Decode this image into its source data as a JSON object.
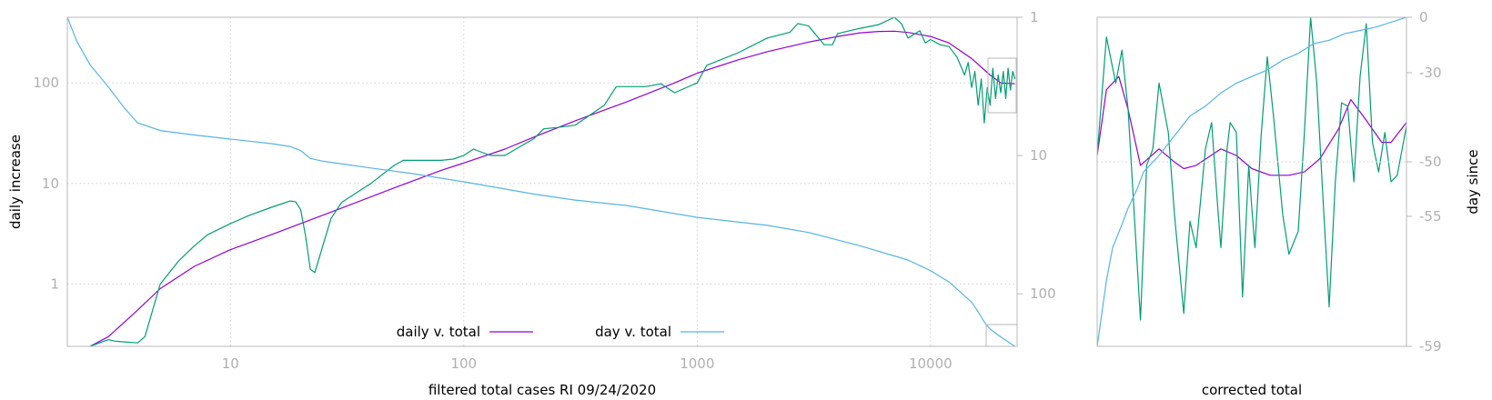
{
  "chart_data": [
    {
      "type": "line",
      "xlabel": "filtered total cases RI 09/24/2020",
      "ylabel": "daily increase",
      "x_scale": "log",
      "y_scale": "log",
      "xlim": [
        2,
        23500
      ],
      "ylim": [
        0.24,
        450
      ],
      "x_ticks": [
        "10",
        "100",
        "1000",
        "10000"
      ],
      "y_ticks": [
        "1",
        "10",
        "100"
      ],
      "y2_label": "",
      "y2_scale": "log-reversed",
      "y2lim": [
        1,
        240
      ],
      "y2_ticks": [
        "1",
        "10",
        "100"
      ],
      "grid": true,
      "legend_placement": "bottom-center",
      "legend": [
        "daily v. total",
        "day v. total"
      ],
      "series": [
        {
          "name": "daily v. total",
          "color": "#9400d3",
          "axis": "y",
          "points": [
            [
              2.5,
              0.24
            ],
            [
              3,
              0.3
            ],
            [
              4,
              0.55
            ],
            [
              5,
              0.9
            ],
            [
              7,
              1.5
            ],
            [
              10,
              2.2
            ],
            [
              15,
              3.1
            ],
            [
              20,
              4.0
            ],
            [
              30,
              5.7
            ],
            [
              50,
              9
            ],
            [
              80,
              13.5
            ],
            [
              100,
              16
            ],
            [
              150,
              22
            ],
            [
              200,
              29
            ],
            [
              300,
              42
            ],
            [
              500,
              65
            ],
            [
              800,
              100
            ],
            [
              1000,
              125
            ],
            [
              1500,
              170
            ],
            [
              2000,
              205
            ],
            [
              3000,
              255
            ],
            [
              4000,
              290
            ],
            [
              5000,
              315
            ],
            [
              6000,
              325
            ],
            [
              7000,
              327
            ],
            [
              8000,
              318
            ],
            [
              10000,
              290
            ],
            [
              12000,
              250
            ],
            [
              15000,
              175
            ],
            [
              18000,
              120
            ],
            [
              20000,
              100
            ],
            [
              23000,
              98
            ]
          ]
        },
        {
          "color": "#009e73",
          "axis": "y",
          "points": [
            [
              2.5,
              0.24
            ],
            [
              3,
              0.28
            ],
            [
              3.2,
              0.27
            ],
            [
              4,
              0.26
            ],
            [
              4.3,
              0.3
            ],
            [
              5,
              1.0
            ],
            [
              6,
              1.7
            ],
            [
              7,
              2.4
            ],
            [
              8,
              3.1
            ],
            [
              10,
              4.0
            ],
            [
              12,
              4.8
            ],
            [
              15,
              5.8
            ],
            [
              18,
              6.7
            ],
            [
              19,
              6.6
            ],
            [
              20,
              5.5
            ],
            [
              21,
              3
            ],
            [
              22,
              1.4
            ],
            [
              23,
              1.3
            ],
            [
              25,
              2.5
            ],
            [
              27,
              4.5
            ],
            [
              30,
              6.5
            ],
            [
              40,
              10
            ],
            [
              50,
              15
            ],
            [
              55,
              17
            ],
            [
              80,
              17
            ],
            [
              90,
              17.5
            ],
            [
              100,
              19
            ],
            [
              110,
              22
            ],
            [
              130,
              19
            ],
            [
              150,
              19
            ],
            [
              200,
              28
            ],
            [
              220,
              35
            ],
            [
              250,
              36
            ],
            [
              300,
              38
            ],
            [
              400,
              60
            ],
            [
              450,
              92
            ],
            [
              600,
              92
            ],
            [
              700,
              98
            ],
            [
              800,
              80
            ],
            [
              1000,
              100
            ],
            [
              1100,
              150
            ],
            [
              1500,
              200
            ],
            [
              2000,
              280
            ],
            [
              2500,
              320
            ],
            [
              2700,
              390
            ],
            [
              3000,
              370
            ],
            [
              3500,
              240
            ],
            [
              3800,
              240
            ],
            [
              4000,
              310
            ],
            [
              5000,
              350
            ],
            [
              6000,
              380
            ],
            [
              7000,
              450
            ],
            [
              7500,
              390
            ],
            [
              8000,
              280
            ],
            [
              9000,
              330
            ],
            [
              9500,
              250
            ],
            [
              10000,
              270
            ],
            [
              11000,
              240
            ],
            [
              12000,
              230
            ],
            [
              13000,
              180
            ],
            [
              14000,
              120
            ],
            [
              14500,
              160
            ],
            [
              15000,
              90
            ],
            [
              15500,
              130
            ],
            [
              16000,
              60
            ],
            [
              16500,
              110
            ],
            [
              17000,
              40
            ],
            [
              17500,
              90
            ],
            [
              18000,
              60
            ],
            [
              18500,
              140
            ],
            [
              19000,
              70
            ],
            [
              19500,
              120
            ],
            [
              20000,
              80
            ],
            [
              20500,
              130
            ],
            [
              21000,
              70
            ],
            [
              21500,
              140
            ],
            [
              22000,
              85
            ],
            [
              22500,
              130
            ],
            [
              23000,
              110
            ]
          ]
        },
        {
          "name": "day v. total",
          "color": "#56b4e9",
          "axis": "y2",
          "points": [
            [
              2,
              1
            ],
            [
              2.2,
              1.5
            ],
            [
              2.5,
              2.2
            ],
            [
              3,
              3.2
            ],
            [
              3.5,
              4.5
            ],
            [
              4,
              5.8
            ],
            [
              4.5,
              6.2
            ],
            [
              5,
              6.6
            ],
            [
              7,
              7.1
            ],
            [
              10,
              7.6
            ],
            [
              15,
              8.2
            ],
            [
              18,
              8.6
            ],
            [
              20,
              9.2
            ],
            [
              22,
              10.5
            ],
            [
              25,
              11
            ],
            [
              40,
              12.3
            ],
            [
              60,
              13.5
            ],
            [
              100,
              15.5
            ],
            [
              200,
              19
            ],
            [
              300,
              21
            ],
            [
              500,
              23
            ],
            [
              1000,
              28
            ],
            [
              2000,
              32
            ],
            [
              3000,
              36
            ],
            [
              5000,
              45
            ],
            [
              8000,
              57
            ],
            [
              10000,
              68
            ],
            [
              12000,
              82
            ],
            [
              15000,
              115
            ],
            [
              16000,
              135
            ],
            [
              17000,
              160
            ],
            [
              18000,
              180
            ],
            [
              20000,
              205
            ],
            [
              23000,
              240
            ]
          ]
        }
      ]
    },
    {
      "type": "line",
      "xlabel": "corrected total",
      "ylabel": "day since",
      "y2_ticks": [
        "0",
        "-30",
        "-50",
        "-55",
        "-59"
      ],
      "grid": false,
      "series": [
        {
          "color": "#9400d3",
          "points": [
            [
              0,
              0.42
            ],
            [
              0.03,
              0.22
            ],
            [
              0.07,
              0.18
            ],
            [
              0.1,
              0.28
            ],
            [
              0.14,
              0.45
            ],
            [
              0.2,
              0.4
            ],
            [
              0.25,
              0.44
            ],
            [
              0.28,
              0.46
            ],
            [
              0.32,
              0.45
            ],
            [
              0.4,
              0.4
            ],
            [
              0.45,
              0.42
            ],
            [
              0.5,
              0.46
            ],
            [
              0.56,
              0.48
            ],
            [
              0.62,
              0.48
            ],
            [
              0.67,
              0.47
            ],
            [
              0.72,
              0.43
            ],
            [
              0.78,
              0.34
            ],
            [
              0.82,
              0.25
            ],
            [
              0.86,
              0.3
            ],
            [
              0.92,
              0.38
            ],
            [
              0.95,
              0.38
            ],
            [
              1,
              0.32
            ]
          ]
        },
        {
          "color": "#009e73",
          "points": [
            [
              0,
              0.42
            ],
            [
              0.03,
              0.06
            ],
            [
              0.06,
              0.2
            ],
            [
              0.08,
              0.1
            ],
            [
              0.1,
              0.28
            ],
            [
              0.12,
              0.6
            ],
            [
              0.14,
              0.92
            ],
            [
              0.16,
              0.45
            ],
            [
              0.18,
              0.4
            ],
            [
              0.2,
              0.2
            ],
            [
              0.23,
              0.35
            ],
            [
              0.25,
              0.6
            ],
            [
              0.28,
              0.9
            ],
            [
              0.3,
              0.62
            ],
            [
              0.32,
              0.7
            ],
            [
              0.35,
              0.4
            ],
            [
              0.37,
              0.32
            ],
            [
              0.39,
              0.58
            ],
            [
              0.4,
              0.7
            ],
            [
              0.42,
              0.4
            ],
            [
              0.43,
              0.32
            ],
            [
              0.45,
              0.35
            ],
            [
              0.47,
              0.85
            ],
            [
              0.49,
              0.45
            ],
            [
              0.5,
              0.58
            ],
            [
              0.51,
              0.7
            ],
            [
              0.53,
              0.36
            ],
            [
              0.55,
              0.12
            ],
            [
              0.57,
              0.3
            ],
            [
              0.6,
              0.6
            ],
            [
              0.62,
              0.72
            ],
            [
              0.65,
              0.65
            ],
            [
              0.67,
              0.35
            ],
            [
              0.69,
              0.0
            ],
            [
              0.71,
              0.2
            ],
            [
              0.73,
              0.55
            ],
            [
              0.75,
              0.88
            ],
            [
              0.77,
              0.5
            ],
            [
              0.79,
              0.26
            ],
            [
              0.81,
              0.27
            ],
            [
              0.83,
              0.5
            ],
            [
              0.85,
              0.18
            ],
            [
              0.87,
              0.02
            ],
            [
              0.89,
              0.38
            ],
            [
              0.91,
              0.47
            ],
            [
              0.93,
              0.35
            ],
            [
              0.95,
              0.5
            ],
            [
              0.97,
              0.48
            ],
            [
              1,
              0.33
            ]
          ]
        },
        {
          "color": "#56b4e9",
          "points": [
            [
              0,
              1
            ],
            [
              0.03,
              0.8
            ],
            [
              0.05,
              0.7
            ],
            [
              0.08,
              0.63
            ],
            [
              0.1,
              0.58
            ],
            [
              0.13,
              0.52
            ],
            [
              0.15,
              0.47
            ],
            [
              0.2,
              0.42
            ],
            [
              0.25,
              0.36
            ],
            [
              0.3,
              0.3
            ],
            [
              0.35,
              0.27
            ],
            [
              0.4,
              0.23
            ],
            [
              0.45,
              0.2
            ],
            [
              0.5,
              0.18
            ],
            [
              0.55,
              0.16
            ],
            [
              0.6,
              0.13
            ],
            [
              0.65,
              0.11
            ],
            [
              0.7,
              0.08
            ],
            [
              0.75,
              0.07
            ],
            [
              0.8,
              0.05
            ],
            [
              0.85,
              0.04
            ],
            [
              0.9,
              0.03
            ],
            [
              0.95,
              0.015
            ],
            [
              1,
              0
            ]
          ]
        }
      ]
    }
  ]
}
